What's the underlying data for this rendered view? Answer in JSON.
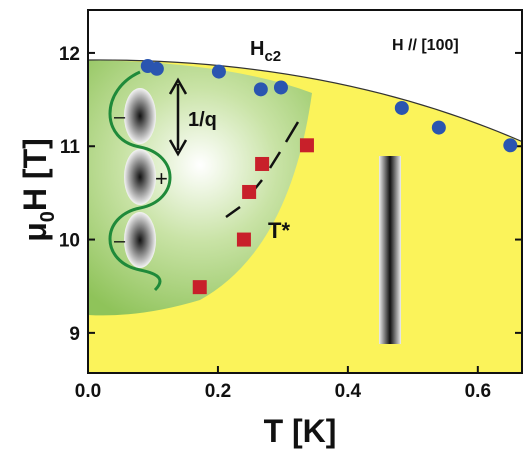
{
  "chart_data": {
    "type": "scatter",
    "xlabel": "T [K]",
    "ylabel": {
      "pre": "μ",
      "sub": "0",
      "rest": "H [T]"
    },
    "annotations": {
      "hc2": {
        "text": "H",
        "sub": "c2"
      },
      "field": "H // [100]",
      "wavelength": "1/q",
      "tstar": "T*",
      "plus": "+",
      "minus_top": "–",
      "minus_bottom": "–"
    },
    "xlim": [
      0,
      0.668
    ],
    "ylim": [
      8.57,
      12.46
    ],
    "xticks": [
      {
        "value": 0,
        "label": "0.0"
      },
      0.2,
      0.4,
      0.6
    ],
    "yticks": [
      9,
      10,
      11,
      12
    ],
    "series": [
      {
        "color": "#2a55b0",
        "marker": "circle",
        "x": [
          0.092,
          0.106,
          0.2015,
          0.266,
          0.297,
          0.483,
          0.54,
          0.65
        ],
        "values": [
          11.86,
          11.83,
          11.8,
          11.61,
          11.63,
          11.41,
          11.2,
          11.01
        ]
      },
      {
        "color": "#c8202a",
        "marker": "square",
        "x": [
          0.172,
          0.24,
          0.248,
          0.268,
          0.337
        ],
        "values": [
          9.49,
          10.0,
          10.51,
          10.81,
          11.01
        ]
      }
    ]
  }
}
